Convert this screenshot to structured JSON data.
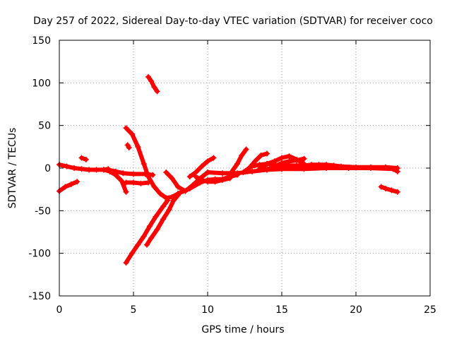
{
  "chart_data": {
    "type": "scatter",
    "title": "Day 257 of 2022, Sidereal Day-to-day VTEC variation (SDTVAR) for receiver coco",
    "xlabel": "GPS time / hours",
    "ylabel": "SDTVAR / TECUs",
    "xlim": [
      0,
      25
    ],
    "ylim": [
      -150,
      150
    ],
    "xticks": [
      0,
      5,
      10,
      15,
      20,
      25
    ],
    "yticks": [
      -150,
      -100,
      -50,
      0,
      50,
      100,
      150
    ],
    "grid": true,
    "legend": "none",
    "marker": "+",
    "color": "#ff0000",
    "series": [
      {
        "x": [
          0.0,
          0.5,
          1.0,
          1.5,
          2.0,
          2.5,
          3.0,
          3.3
        ],
        "y": [
          4,
          2,
          0,
          -1,
          -2,
          -2,
          -2,
          -1
        ]
      },
      {
        "x": [
          0.0,
          0.4,
          0.8,
          1.2
        ],
        "y": [
          -27,
          -22,
          -19,
          -16
        ]
      },
      {
        "x": [
          1.5,
          1.8
        ],
        "y": [
          12,
          10
        ]
      },
      {
        "x": [
          3.0,
          3.4,
          3.8,
          4.2,
          4.5
        ],
        "y": [
          -2,
          -4,
          -8,
          -15,
          -28
        ]
      },
      {
        "x": [
          3.3,
          3.8,
          4.3,
          5.0,
          5.8,
          6.3
        ],
        "y": [
          -2,
          -4,
          -6,
          -7,
          -7,
          -8
        ]
      },
      {
        "x": [
          4.5,
          4.9,
          5.3,
          5.7,
          6.0,
          6.4,
          6.8,
          7.2,
          7.6,
          8.0
        ],
        "y": [
          47,
          40,
          25,
          5,
          -10,
          -22,
          -30,
          -35,
          -34,
          -30
        ]
      },
      {
        "x": [
          4.6,
          4.7
        ],
        "y": [
          27,
          24
        ]
      },
      {
        "x": [
          4.5,
          5.0,
          5.5,
          6.0
        ],
        "y": [
          -17,
          -17,
          -18,
          -17
        ]
      },
      {
        "x": [
          6.0,
          6.2,
          6.4,
          6.6
        ],
        "y": [
          107,
          102,
          95,
          90
        ]
      },
      {
        "x": [
          4.5,
          4.9,
          5.3,
          5.7,
          6.1,
          6.5,
          7.0,
          7.3
        ],
        "y": [
          -111,
          -100,
          -90,
          -80,
          -68,
          -57,
          -45,
          -38
        ]
      },
      {
        "x": [
          5.9,
          6.2,
          6.6,
          7.0,
          7.4,
          7.7,
          8.0
        ],
        "y": [
          -90,
          -82,
          -72,
          -60,
          -49,
          -38,
          -32
        ]
      },
      {
        "x": [
          7.2,
          7.6,
          8.0,
          8.5,
          9.0,
          9.5,
          10.0
        ],
        "y": [
          -5,
          -12,
          -22,
          -27,
          -20,
          -12,
          -5
        ]
      },
      {
        "x": [
          8.8,
          9.2,
          9.6,
          10.0,
          10.4
        ],
        "y": [
          -10,
          -5,
          2,
          8,
          12
        ]
      },
      {
        "x": [
          8.0,
          8.8,
          9.5,
          10.0,
          10.5,
          11.0,
          11.5,
          12.0
        ],
        "y": [
          -30,
          -24,
          -17,
          -14,
          -13,
          -13,
          -10,
          -8
        ]
      },
      {
        "x": [
          9.2,
          9.6,
          10.0,
          10.5,
          11.0,
          11.5
        ],
        "y": [
          -10,
          -14,
          -16,
          -16,
          -14,
          -12
        ]
      },
      {
        "x": [
          10.0,
          11.0,
          12.0,
          13.0,
          14.0,
          15.0
        ],
        "y": [
          -5,
          -6,
          -6,
          -4,
          -2,
          -1
        ]
      },
      {
        "x": [
          11.6,
          12.0,
          12.3,
          12.6
        ],
        "y": [
          -5,
          5,
          15,
          22
        ]
      },
      {
        "x": [
          12.4,
          12.8,
          13.2,
          13.6,
          14.0
        ],
        "y": [
          -5,
          0,
          8,
          15,
          17
        ]
      },
      {
        "x": [
          13.0,
          13.5,
          14.0,
          14.5,
          15.0,
          15.5,
          16.0,
          16.5,
          17.0,
          17.5,
          18.0,
          18.5,
          19.0,
          20.0,
          21.0,
          22.0,
          22.8
        ],
        "y": [
          2,
          4,
          5,
          4,
          3,
          3,
          3,
          3,
          4,
          4,
          4,
          3,
          2,
          1,
          1,
          1,
          0
        ]
      },
      {
        "x": [
          13.5,
          14.0,
          14.5,
          15.0,
          15.5,
          16.0,
          16.5
        ],
        "y": [
          -1,
          5,
          8,
          12,
          14,
          10,
          5
        ]
      },
      {
        "x": [
          14.0,
          14.5,
          15.0,
          15.5,
          16.0,
          16.5
        ],
        "y": [
          -2,
          2,
          6,
          8,
          9,
          11
        ]
      },
      {
        "x": [
          13.5,
          15.0,
          16.5,
          18.0,
          19.5,
          21.0,
          22.5,
          22.8
        ],
        "y": [
          -1,
          -1,
          -1,
          0,
          0,
          0,
          -1,
          -4
        ]
      },
      {
        "x": [
          21.7,
          22.0,
          22.4,
          22.8
        ],
        "y": [
          -22,
          -24,
          -26,
          -28
        ]
      }
    ]
  }
}
